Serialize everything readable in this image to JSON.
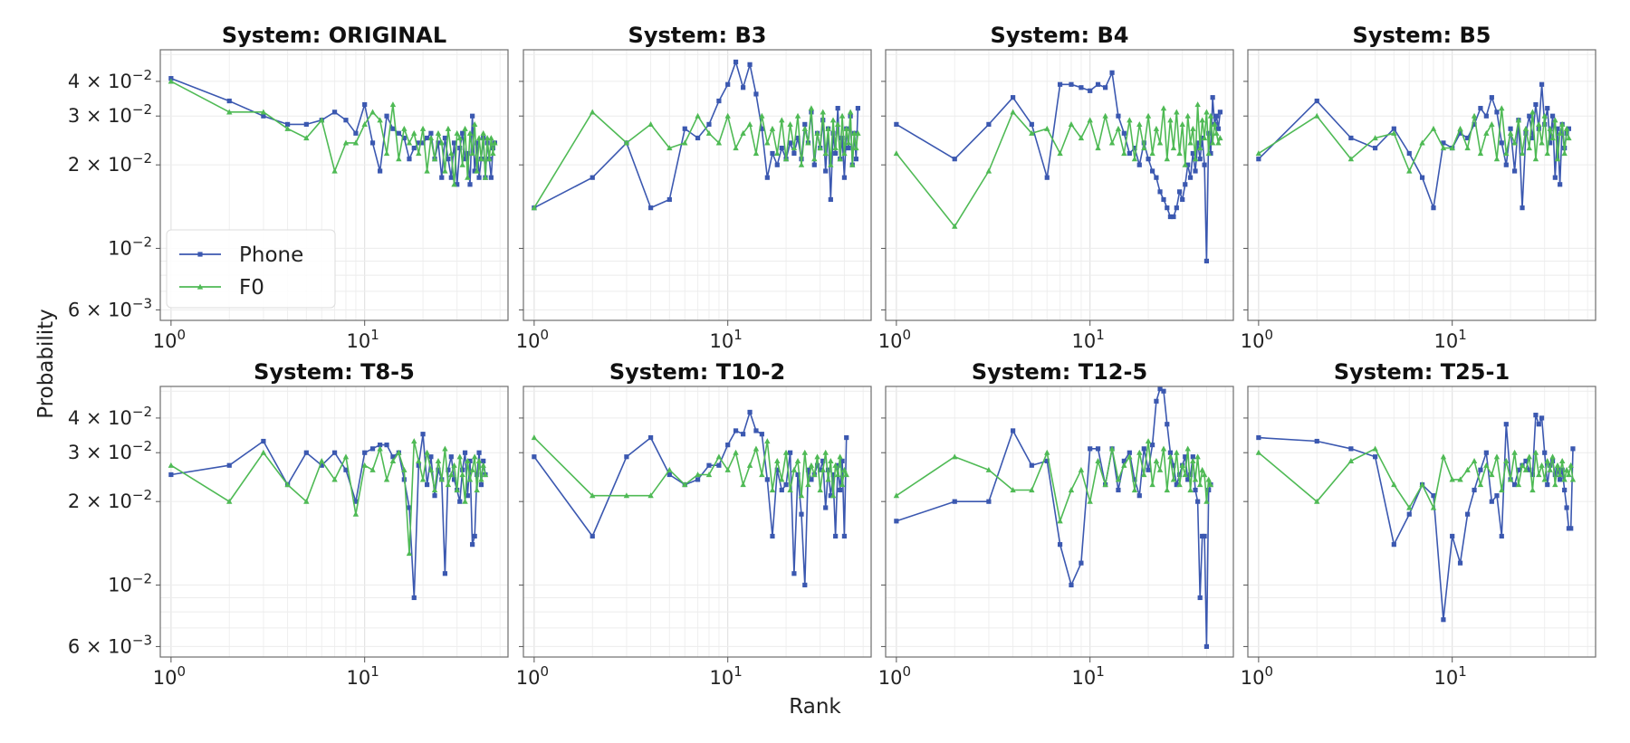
{
  "chart_data": {
    "type": "line",
    "xlabel": "Rank",
    "ylabel": "Probability",
    "xscale": "log",
    "yscale": "log",
    "xlim": [
      0.88,
      55
    ],
    "ylim": [
      0.0055,
      0.052
    ],
    "x_ticks": [
      {
        "value": 1,
        "base": "10",
        "exp": "0"
      },
      {
        "value": 10,
        "base": "10",
        "exp": "1"
      }
    ],
    "y_ticks": [
      {
        "value": 0.04,
        "mant": "4 × 10",
        "exp": "−2"
      },
      {
        "value": 0.03,
        "mant": "3 × 10",
        "exp": "−2"
      },
      {
        "value": 0.02,
        "mant": "2 × 10",
        "exp": "−2"
      },
      {
        "value": 0.01,
        "mant": "10",
        "exp": "−2"
      },
      {
        "value": 0.006,
        "mant": "6 × 10",
        "exp": "−3"
      }
    ],
    "grid": true,
    "legend": {
      "location": "lower-left",
      "panel": 0
    },
    "series_style": [
      {
        "name": "Phone",
        "color": "#3b58b0",
        "marker": "square"
      },
      {
        "name": "F0",
        "color": "#4fba55",
        "marker": "triangle"
      }
    ],
    "panels": [
      {
        "title": "System: ORIGINAL",
        "series": [
          {
            "name": "Phone",
            "values": [
              0.041,
              0.034,
              0.03,
              0.028,
              0.028,
              0.029,
              0.031,
              0.029,
              0.026,
              0.033,
              0.024,
              0.019,
              0.03,
              0.027,
              0.026,
              0.025,
              0.021,
              0.023,
              0.024,
              0.024,
              0.025,
              0.026,
              0.021,
              0.024,
              0.018,
              0.025,
              0.021,
              0.018,
              0.024,
              0.017,
              0.023,
              0.026,
              0.021,
              0.022,
              0.017,
              0.03,
              0.019,
              0.024,
              0.018,
              0.021,
              0.025,
              0.018,
              0.024,
              0.021,
              0.018,
              0.023,
              0.024
            ]
          },
          {
            "name": "F0",
            "values": [
              0.04,
              0.031,
              0.031,
              0.027,
              0.025,
              0.029,
              0.019,
              0.024,
              0.024,
              0.028,
              0.031,
              0.029,
              0.022,
              0.033,
              0.021,
              0.027,
              0.024,
              0.026,
              0.022,
              0.027,
              0.019,
              0.025,
              0.021,
              0.026,
              0.024,
              0.019,
              0.027,
              0.022,
              0.017,
              0.026,
              0.025,
              0.02,
              0.027,
              0.018,
              0.026,
              0.022,
              0.028,
              0.019,
              0.025,
              0.021,
              0.026,
              0.018,
              0.025,
              0.021,
              0.025,
              0.022,
              0.024
            ]
          }
        ]
      },
      {
        "title": "System: B3",
        "series": [
          {
            "name": "Phone",
            "values": [
              0.014,
              0.018,
              0.024,
              0.014,
              0.015,
              0.027,
              0.025,
              0.028,
              0.034,
              0.039,
              0.047,
              0.038,
              0.046,
              0.036,
              0.027,
              0.018,
              0.022,
              0.02,
              0.023,
              0.021,
              0.024,
              0.022,
              0.025,
              0.021,
              0.028,
              0.024,
              0.031,
              0.02,
              0.026,
              0.023,
              0.029,
              0.019,
              0.027,
              0.015,
              0.026,
              0.022,
              0.032,
              0.021,
              0.025,
              0.018,
              0.027,
              0.023,
              0.03,
              0.02,
              0.026,
              0.021,
              0.032
            ]
          },
          {
            "name": "F0",
            "values": [
              0.014,
              0.031,
              0.024,
              0.028,
              0.023,
              0.024,
              0.03,
              0.026,
              0.024,
              0.03,
              0.023,
              0.026,
              0.028,
              0.022,
              0.03,
              0.024,
              0.027,
              0.022,
              0.029,
              0.021,
              0.028,
              0.023,
              0.03,
              0.02,
              0.027,
              0.024,
              0.032,
              0.021,
              0.026,
              0.023,
              0.031,
              0.022,
              0.027,
              0.02,
              0.029,
              0.023,
              0.028,
              0.021,
              0.03,
              0.022,
              0.027,
              0.024,
              0.031,
              0.02,
              0.026,
              0.023,
              0.026
            ]
          }
        ]
      },
      {
        "title": "System: B4",
        "series": [
          {
            "name": "Phone",
            "values": [
              0.028,
              0.021,
              0.028,
              0.035,
              0.028,
              0.018,
              0.039,
              0.039,
              0.038,
              0.037,
              0.039,
              0.038,
              0.043,
              0.03,
              0.026,
              0.022,
              0.023,
              0.02,
              0.024,
              0.021,
              0.019,
              0.018,
              0.016,
              0.015,
              0.014,
              0.013,
              0.013,
              0.014,
              0.016,
              0.015,
              0.017,
              0.02,
              0.018,
              0.022,
              0.019,
              0.024,
              0.021,
              0.025,
              0.02,
              0.009,
              0.026,
              0.022,
              0.035,
              0.028,
              0.03,
              0.027,
              0.031
            ]
          },
          {
            "name": "F0",
            "values": [
              0.022,
              0.012,
              0.019,
              0.031,
              0.026,
              0.027,
              0.022,
              0.028,
              0.025,
              0.029,
              0.023,
              0.03,
              0.024,
              0.027,
              0.022,
              0.029,
              0.021,
              0.028,
              0.023,
              0.03,
              0.022,
              0.027,
              0.024,
              0.032,
              0.021,
              0.029,
              0.023,
              0.031,
              0.022,
              0.028,
              0.02,
              0.03,
              0.024,
              0.027,
              0.021,
              0.033,
              0.023,
              0.029,
              0.025,
              0.031,
              0.022,
              0.03,
              0.024,
              0.028,
              0.026,
              0.024,
              0.025
            ]
          }
        ]
      },
      {
        "title": "System: B5",
        "series": [
          {
            "name": "Phone",
            "values": [
              0.021,
              0.034,
              0.025,
              0.023,
              0.027,
              0.022,
              0.018,
              0.014,
              0.024,
              0.023,
              0.026,
              0.025,
              0.028,
              0.032,
              0.03,
              0.035,
              0.031,
              0.024,
              0.02,
              0.027,
              0.019,
              0.029,
              0.014,
              0.026,
              0.03,
              0.025,
              0.033,
              0.027,
              0.039,
              0.028,
              0.032,
              0.024,
              0.03,
              0.018,
              0.027,
              0.017,
              0.028,
              0.023,
              0.026,
              0.027
            ]
          },
          {
            "name": "F0",
            "values": [
              0.022,
              0.03,
              0.021,
              0.025,
              0.026,
              0.019,
              0.024,
              0.027,
              0.023,
              0.023,
              0.027,
              0.023,
              0.03,
              0.022,
              0.026,
              0.028,
              0.021,
              0.032,
              0.022,
              0.026,
              0.024,
              0.029,
              0.022,
              0.027,
              0.023,
              0.031,
              0.021,
              0.028,
              0.024,
              0.03,
              0.022,
              0.027,
              0.025,
              0.029,
              0.021,
              0.026,
              0.028,
              0.022,
              0.027,
              0.025
            ]
          }
        ]
      },
      {
        "title": "System: T8-5",
        "series": [
          {
            "name": "Phone",
            "values": [
              0.025,
              0.027,
              0.033,
              0.023,
              0.03,
              0.027,
              0.03,
              0.026,
              0.02,
              0.03,
              0.031,
              0.032,
              0.032,
              0.029,
              0.03,
              0.024,
              0.019,
              0.009,
              0.027,
              0.035,
              0.023,
              0.029,
              0.021,
              0.026,
              0.024,
              0.011,
              0.026,
              0.029,
              0.024,
              0.022,
              0.02,
              0.026,
              0.03,
              0.021,
              0.028,
              0.014,
              0.015,
              0.025,
              0.03,
              0.023,
              0.028,
              0.025
            ]
          },
          {
            "name": "F0",
            "values": [
              0.027,
              0.02,
              0.03,
              0.023,
              0.02,
              0.028,
              0.024,
              0.029,
              0.018,
              0.027,
              0.026,
              0.031,
              0.024,
              0.028,
              0.03,
              0.026,
              0.013,
              0.033,
              0.028,
              0.024,
              0.03,
              0.026,
              0.022,
              0.028,
              0.024,
              0.031,
              0.023,
              0.025,
              0.027,
              0.022,
              0.029,
              0.025,
              0.02,
              0.028,
              0.024,
              0.026,
              0.029,
              0.022,
              0.028,
              0.024,
              0.027,
              0.025
            ]
          }
        ]
      },
      {
        "title": "System: T10-2",
        "series": [
          {
            "name": "Phone",
            "values": [
              0.029,
              0.015,
              0.029,
              0.034,
              0.025,
              0.023,
              0.024,
              0.027,
              0.027,
              0.032,
              0.036,
              0.035,
              0.042,
              0.036,
              0.035,
              0.024,
              0.015,
              0.026,
              0.022,
              0.023,
              0.03,
              0.011,
              0.025,
              0.018,
              0.01,
              0.026,
              0.024,
              0.025,
              0.027,
              0.026,
              0.028,
              0.019,
              0.026,
              0.021,
              0.025,
              0.015,
              0.027,
              0.022,
              0.028,
              0.015,
              0.034
            ]
          },
          {
            "name": "F0",
            "values": [
              0.034,
              0.021,
              0.021,
              0.021,
              0.026,
              0.023,
              0.025,
              0.025,
              0.029,
              0.026,
              0.03,
              0.023,
              0.027,
              0.031,
              0.025,
              0.033,
              0.022,
              0.028,
              0.024,
              0.03,
              0.022,
              0.026,
              0.028,
              0.021,
              0.03,
              0.023,
              0.027,
              0.025,
              0.029,
              0.022,
              0.026,
              0.03,
              0.024,
              0.028,
              0.021,
              0.027,
              0.025,
              0.029,
              0.023,
              0.026,
              0.025
            ]
          }
        ]
      },
      {
        "title": "System: T12-5",
        "series": [
          {
            "name": "Phone",
            "values": [
              0.017,
              0.02,
              0.02,
              0.036,
              0.027,
              0.028,
              0.014,
              0.01,
              0.012,
              0.031,
              0.031,
              0.023,
              0.031,
              0.022,
              0.028,
              0.03,
              0.024,
              0.021,
              0.031,
              0.026,
              0.032,
              0.046,
              0.051,
              0.05,
              0.038,
              0.03,
              0.027,
              0.023,
              0.025,
              0.027,
              0.029,
              0.024,
              0.025,
              0.029,
              0.022,
              0.02,
              0.009,
              0.015,
              0.015,
              0.006,
              0.022,
              0.023
            ]
          },
          {
            "name": "F0",
            "values": [
              0.021,
              0.029,
              0.026,
              0.022,
              0.022,
              0.03,
              0.017,
              0.022,
              0.026,
              0.02,
              0.028,
              0.023,
              0.031,
              0.024,
              0.027,
              0.029,
              0.022,
              0.03,
              0.025,
              0.033,
              0.023,
              0.028,
              0.026,
              0.031,
              0.022,
              0.029,
              0.024,
              0.03,
              0.023,
              0.027,
              0.025,
              0.031,
              0.022,
              0.028,
              0.024,
              0.029,
              0.023,
              0.026,
              0.025,
              0.02,
              0.024,
              0.023
            ]
          }
        ]
      },
      {
        "title": "System: T25-1",
        "series": [
          {
            "name": "Phone",
            "values": [
              0.034,
              0.033,
              0.031,
              0.029,
              0.014,
              0.018,
              0.023,
              0.021,
              0.0075,
              0.015,
              0.012,
              0.018,
              0.022,
              0.026,
              0.03,
              0.02,
              0.021,
              0.015,
              0.038,
              0.024,
              0.023,
              0.026,
              0.027,
              0.028,
              0.026,
              0.025,
              0.041,
              0.038,
              0.04,
              0.03,
              0.023,
              0.027,
              0.028,
              0.025,
              0.026,
              0.024,
              0.026,
              0.022,
              0.019,
              0.016,
              0.016,
              0.031
            ]
          },
          {
            "name": "F0",
            "values": [
              0.03,
              0.02,
              0.028,
              0.031,
              0.023,
              0.019,
              0.023,
              0.019,
              0.029,
              0.024,
              0.024,
              0.026,
              0.028,
              0.023,
              0.027,
              0.025,
              0.029,
              0.022,
              0.028,
              0.024,
              0.03,
              0.023,
              0.027,
              0.026,
              0.029,
              0.022,
              0.03,
              0.025,
              0.027,
              0.024,
              0.028,
              0.026,
              0.029,
              0.023,
              0.027,
              0.025,
              0.028,
              0.024,
              0.026,
              0.025,
              0.027,
              0.024
            ]
          }
        ]
      }
    ]
  }
}
